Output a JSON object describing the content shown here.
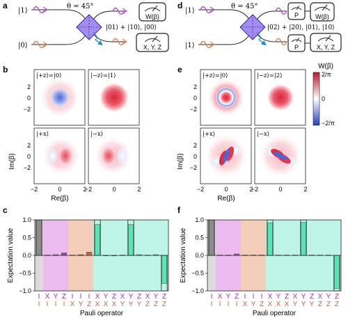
{
  "panel_letters": [
    "a",
    "b",
    "c",
    "d",
    "e",
    "f"
  ],
  "schematic_left": {
    "input_top": "|1⟩",
    "input_bottom": "|0⟩",
    "theta": "θ = 45°",
    "output_state": "|01⟩ + |10⟩, |00⟩",
    "meter_top": "W(β)",
    "meter_bottom": "X, Y, Z"
  },
  "schematic_right": {
    "input_top": "|1⟩",
    "input_bottom": "|1⟩",
    "theta": "θ = 45°",
    "output_state": "|02⟩ + |20⟩, |01⟩, |10⟩",
    "parity_top": "P",
    "parity_bottom": "P",
    "meter_top": "W(β)",
    "meter_bottom": "X, Y, Z"
  },
  "wigner_left": {
    "titles": [
      "|+z⟩=|0⟩",
      "|−z⟩=|1⟩",
      "|+x⟩",
      "|−x⟩"
    ],
    "ylabel": "Im(β)",
    "xlabel": "Re(β)",
    "ticks": [
      "−2",
      "0",
      "2"
    ]
  },
  "wigner_right": {
    "titles": [
      "|+z⟩=|0⟩",
      "|−z⟩=|2⟩",
      "|+x⟩",
      "|−x⟩"
    ],
    "ylabel": "Im(β)",
    "xlabel": "Re(β)",
    "ticks": [
      "−2",
      "0",
      "2"
    ]
  },
  "colorbar": {
    "title": "W(β)",
    "top_label": "2/π",
    "mid_label": "0",
    "bottom_label": "−2/π",
    "colors": [
      "#b2182b",
      "#ffffff",
      "#2540b8"
    ]
  },
  "chart_data": [
    {
      "type": "bar",
      "panel": "c",
      "ylabel": "Expectation value",
      "xlabel": "Pauli operator",
      "ylim": [
        -1.0,
        1.0
      ],
      "yticks": [
        "1.0",
        "0.5",
        "0.0",
        "−0.5",
        "−1.0"
      ],
      "categories_top": [
        "I",
        "X",
        "Y",
        "Z",
        "I",
        "I",
        "I",
        "X",
        "Y",
        "Z",
        "X",
        "Y",
        "Z",
        "X",
        "Y",
        "Z"
      ],
      "categories_bottom": [
        "I",
        "I",
        "I",
        "I",
        "X",
        "Y",
        "Z",
        "X",
        "X",
        "X",
        "Y",
        "Y",
        "Y",
        "Z",
        "Z",
        "Z"
      ],
      "values": [
        1.0,
        0.01,
        0.02,
        0.07,
        0.01,
        0.02,
        0.09,
        0.87,
        0.0,
        -0.01,
        0.01,
        0.87,
        0.02,
        0.01,
        0.02,
        -0.79
      ],
      "ideal": [
        1,
        0,
        0,
        0,
        0,
        0,
        0,
        1,
        0,
        0,
        0,
        1,
        0,
        0,
        0,
        -1
      ],
      "group_colors": [
        "#bdbdbd",
        "#e9b3ec",
        "#f3c9b0",
        "#b8f3e6"
      ]
    },
    {
      "type": "bar",
      "panel": "f",
      "ylabel": "Expectation value",
      "xlabel": "Pauli operator",
      "ylim": [
        -1.0,
        1.0
      ],
      "yticks": [
        "1.0",
        "0.5",
        "0.0",
        "−0.5",
        "−1.0"
      ],
      "categories_top": [
        "I",
        "X",
        "Y",
        "Z",
        "I",
        "I",
        "I",
        "X",
        "Y",
        "Z",
        "X",
        "Y",
        "Z",
        "X",
        "Y",
        "Z"
      ],
      "categories_bottom": [
        "I",
        "I",
        "I",
        "I",
        "X",
        "Y",
        "Z",
        "X",
        "X",
        "X",
        "Y",
        "Y",
        "Y",
        "Z",
        "Z",
        "Z"
      ],
      "values": [
        1.0,
        0.01,
        0.01,
        0.04,
        0.01,
        0.01,
        0.01,
        0.92,
        0.01,
        0.01,
        0.01,
        0.93,
        0.01,
        0.01,
        0.01,
        -0.93
      ],
      "ideal": [
        1,
        0,
        0,
        0,
        0,
        0,
        0,
        1,
        0,
        0,
        0,
        1,
        0,
        0,
        0,
        -1
      ],
      "group_colors": [
        "#bdbdbd",
        "#e9b3ec",
        "#f3c9b0",
        "#b8f3e6"
      ]
    }
  ]
}
